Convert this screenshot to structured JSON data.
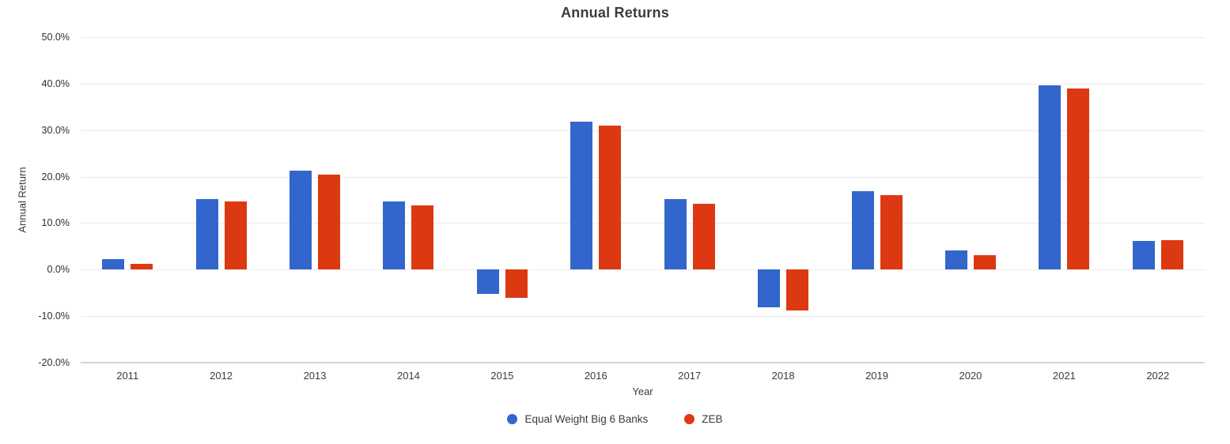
{
  "title": "Annual Returns",
  "chart_data": {
    "type": "bar",
    "title": "Annual Returns",
    "xlabel": "Year",
    "ylabel": "Annual Return",
    "categories": [
      "2011",
      "2012",
      "2013",
      "2014",
      "2015",
      "2016",
      "2017",
      "2018",
      "2019",
      "2020",
      "2021",
      "2022"
    ],
    "series": [
      {
        "name": "Equal Weight Big 6 Banks",
        "color": "#3366CC",
        "values": [
          2.2,
          15.2,
          21.3,
          14.6,
          -5.3,
          31.8,
          15.1,
          -8.1,
          16.9,
          4.1,
          39.7,
          6.2
        ]
      },
      {
        "name": "ZEB",
        "color": "#DC3912",
        "values": [
          1.2,
          14.6,
          20.4,
          13.8,
          -6.0,
          31.0,
          14.2,
          -8.8,
          16.0,
          3.1,
          39.0,
          6.3
        ]
      }
    ],
    "ylim": [
      -20,
      50
    ],
    "ytick_values": [
      50,
      40,
      30,
      20,
      10,
      0,
      -10,
      -20
    ],
    "ytick_labels": [
      "50.0%",
      "40.0%",
      "30.0%",
      "20.0%",
      "10.0%",
      "0.0%",
      "-10.0%",
      "-20.0%"
    ],
    "grid": true,
    "legend_position": "bottom",
    "background_color": "#ffffff",
    "gridline_color": "#ebebeb",
    "axisline_color": "#ccd6de"
  }
}
